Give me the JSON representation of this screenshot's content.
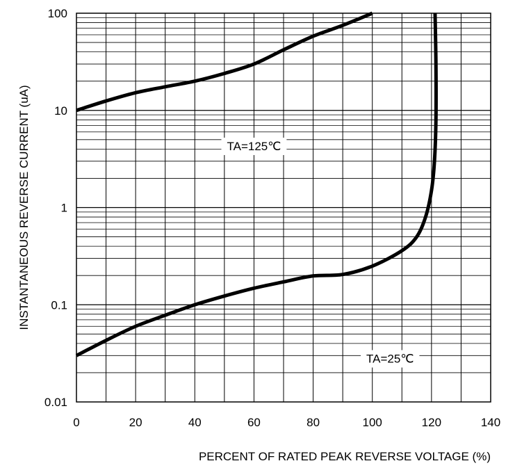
{
  "chart_data": {
    "type": "line",
    "title": "",
    "xlabel": "PERCENT OF RATED PEAK REVERSE VOLTAGE (%)",
    "ylabel": "INSTANTANEOUS REVERSE CURRENT (uA)",
    "x_scale": "linear",
    "y_scale": "log",
    "xlim": [
      0,
      140
    ],
    "ylim": [
      0.01,
      100
    ],
    "x_ticks": [
      0,
      20,
      40,
      60,
      80,
      100,
      120,
      140
    ],
    "x_tick_labels": [
      "0",
      "20",
      "40",
      "60",
      "80",
      "100",
      "120",
      "140"
    ],
    "y_ticks": [
      0.01,
      0.1,
      1,
      10,
      100
    ],
    "y_tick_labels": [
      "0.01",
      "0.1",
      "1",
      "10",
      "100"
    ],
    "grid": true,
    "series": [
      {
        "name": "TA=125℃",
        "points": [
          [
            0,
            10
          ],
          [
            10,
            12.5
          ],
          [
            20,
            15.2
          ],
          [
            30,
            17.5
          ],
          [
            40,
            20
          ],
          [
            50,
            24
          ],
          [
            60,
            30
          ],
          [
            70,
            42
          ],
          [
            80,
            58
          ],
          [
            90,
            75
          ],
          [
            100,
            100
          ]
        ]
      },
      {
        "name": "TA=25℃",
        "points": [
          [
            0,
            0.03
          ],
          [
            10,
            0.043
          ],
          [
            20,
            0.06
          ],
          [
            30,
            0.078
          ],
          [
            40,
            0.1
          ],
          [
            50,
            0.123
          ],
          [
            60,
            0.148
          ],
          [
            70,
            0.172
          ],
          [
            80,
            0.198
          ],
          [
            90,
            0.205
          ],
          [
            100,
            0.25
          ],
          [
            110,
            0.36
          ],
          [
            115,
            0.5
          ],
          [
            118,
            0.8
          ],
          [
            120,
            1.5
          ],
          [
            121,
            3
          ],
          [
            121.5,
            8
          ],
          [
            121.5,
            30
          ],
          [
            121.2,
            100
          ]
        ]
      }
    ],
    "annotations": [
      {
        "text": "TA=125℃",
        "x": 60,
        "y": 4.3
      },
      {
        "text": "TA=25℃",
        "x": 106,
        "y": 0.028
      }
    ]
  }
}
